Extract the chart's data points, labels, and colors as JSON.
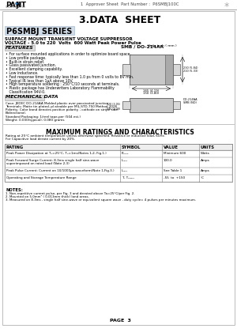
{
  "bg_color": "#ffffff",
  "title": "3.DATA  SHEET",
  "series_title": "P6SMBJ SERIES",
  "subtitle1": "SURFACE MOUNT TRANSIENT VOLTAGE SUPPRESSOR",
  "subtitle2": "VOLTAGE - 5.0 to 220  Volts  600 Watt Peak Power Pulse",
  "features_title": "FEATURES",
  "features": [
    "• For surface mounted applications in order to optimize board space.",
    "• Low profile package.",
    "• Built-in strain relief.",
    "• Glass passivated junction.",
    "• Excellent clamping capability.",
    "• Low inductance.",
    "• Fast response time: typically less than 1.0 ps from 0 volts to BV min.",
    "• Typical IR less than 1μA above 10V.",
    "• High temperature soldering : 250°C/10 seconds at terminals.",
    "• Plastic package has Underwriters Laboratory Flammability",
    "   Classification 94V-0."
  ],
  "mech_title": "MECHANICAL DATA",
  "mech_lines": [
    "Case: JEDEC DO-214AA Molded plastic over passivated junction",
    "Terminals: Matte tin plated, pl ateable per MIL-STD-750 Method 2026",
    "Polarity: Color band denotes positive polarity ; cathode on stripe side.",
    "Bidirectional.",
    "Standard Packaging: 1/reel tape-per (504 est.)",
    "Weight: 0.000(typical); 0.080 grams"
  ],
  "max_ratings_title": "MAXIMUM RATINGS AND CHARACTERISTICS",
  "rating_note1": "Rating at 25°C ambient temperature unless otherwise specified. Resistive or inductive load, 60Hz.",
  "rating_note2": "For Capacitive load derate current by 20%.",
  "table_headers": [
    "RATING",
    "SYMBOL",
    "VALUE",
    "UNITS"
  ],
  "table_rows": [
    [
      "Peak Power Dissipation at Tₐ=25°C, Tₐ=1ms(Notes 1,2, Fig.1.)",
      "Pₘₘₓ",
      "Minimum 600",
      "Watts"
    ],
    [
      "Peak Forward Surge Current: 8.3ms single half sine-wave\nsuperimposed on rated load (Note 2,3)",
      "Iₘₘₓ",
      "100.0",
      "Amps"
    ],
    [
      "Peak Pulse Current: Current on 10/1000μs waveform(Note 1,Fig.3.)",
      "Iₘₘₓ",
      "See Table 1",
      "Amps"
    ],
    [
      "Operating and Storage Temperature Range",
      "Tₗ, Tₘₗₘₓ",
      "-55  to  +150",
      "°C"
    ]
  ],
  "notes_title": "NOTES:",
  "notes": [
    "1. Non-repetitive current pulse, per Fig. 3 and derated above Ta=25°C/per Fig. 2.",
    "2. Mounted on 5.0mm² ( 0.013mm thick) land areas.",
    "3. Measured on 8.3ms , single half sine-wave or equivalent square wave , duty cycle= 4 pulses per minutes maximum."
  ],
  "page_text": "PAGE  3",
  "approval_text": "1  Approver Sheet  Part Number :  P6SMBJ100C",
  "package_label": "SMB / DO-214AA",
  "unit_label": "Unit: inch ( mm )"
}
